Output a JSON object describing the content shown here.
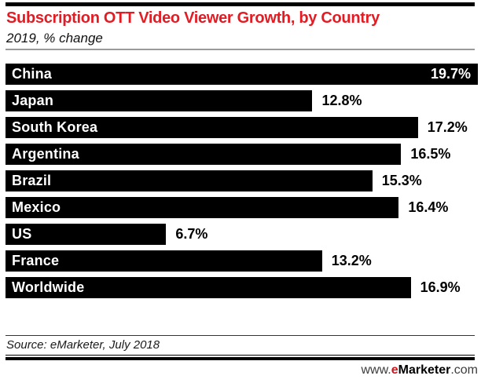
{
  "chart_data": {
    "type": "bar",
    "orientation": "horizontal",
    "title": "Subscription OTT Video Viewer Growth, by Country",
    "subtitle": "2019, % change",
    "categories": [
      "China",
      "Japan",
      "South Korea",
      "Argentina",
      "Brazil",
      "Mexico",
      "US",
      "France",
      "Worldwide"
    ],
    "values": [
      19.7,
      12.8,
      17.2,
      16.5,
      15.3,
      16.4,
      6.7,
      13.2,
      16.9
    ],
    "value_suffix": "%",
    "xlim": [
      0,
      19.7
    ],
    "grid": false,
    "legend": false,
    "bar_color": "#000000",
    "value_labels": [
      "19.7%",
      "12.8%",
      "17.2%",
      "16.5%",
      "15.3%",
      "16.4%",
      "6.7%",
      "13.2%",
      "16.9%"
    ]
  },
  "footer": {
    "source": "Source: eMarketer, July 2018",
    "site_prefix": "www.",
    "site_e": "e",
    "site_name": "Marketer",
    "site_suffix": ".com"
  },
  "colors": {
    "accent_red": "#e31b23",
    "bar": "#000000"
  }
}
